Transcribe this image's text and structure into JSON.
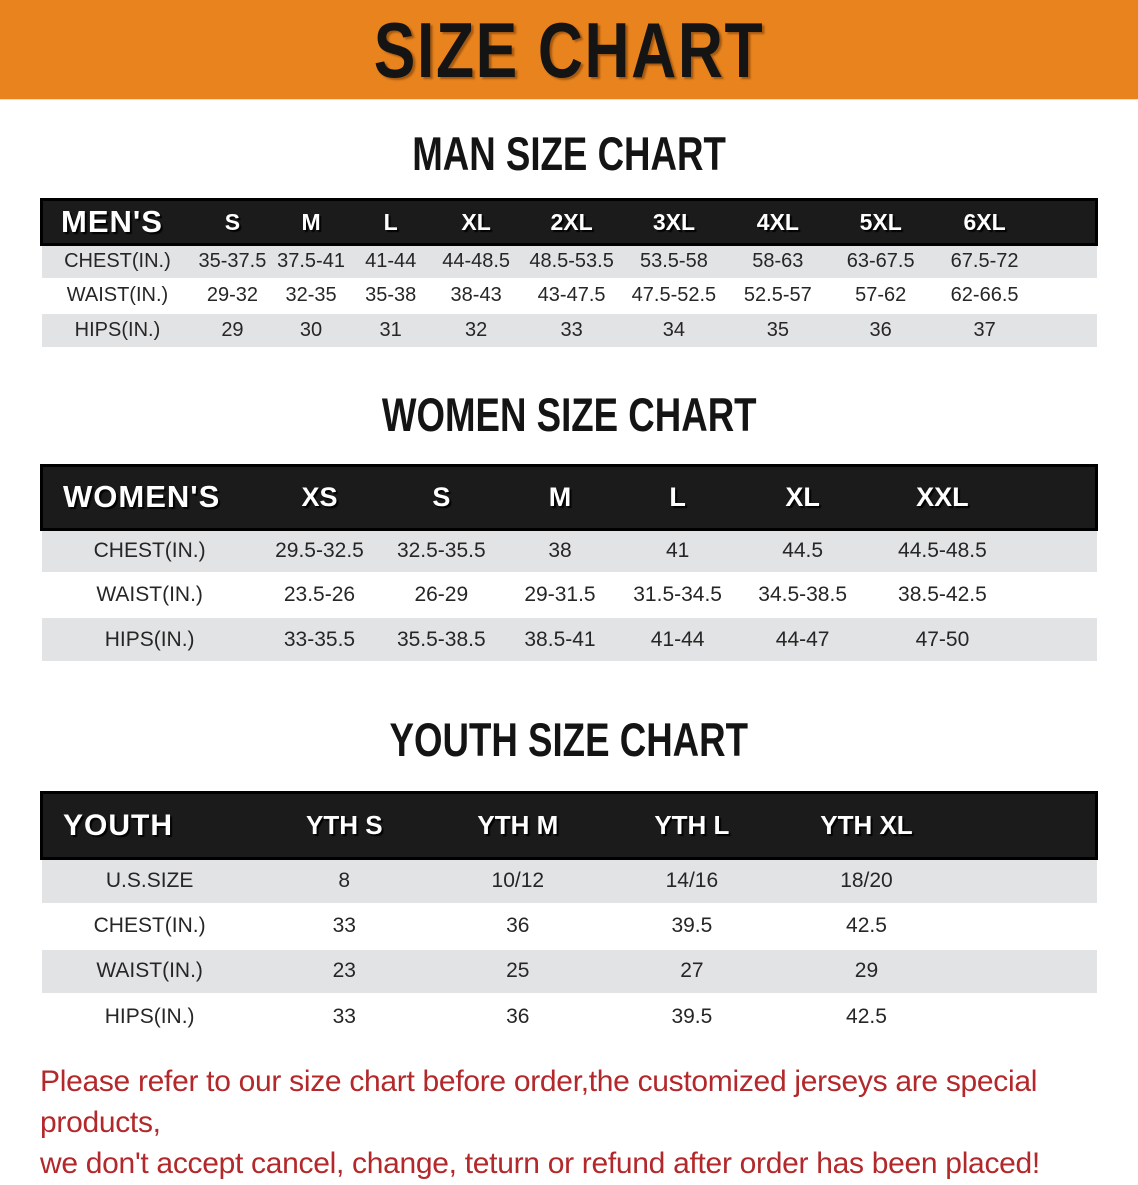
{
  "banner": {
    "title": "SIZE CHART",
    "background_color": "#E8831D"
  },
  "sections": [
    {
      "heading": "MAN SIZE CHART",
      "table": {
        "header_label": "MEN'S",
        "columns": [
          "S",
          "M",
          "L",
          "XL",
          "2XL",
          "3XL",
          "4XL",
          "5XL",
          "6XL"
        ],
        "rows": [
          {
            "label": "CHEST(IN.)",
            "values": [
              "35-37.5",
              "37.5-41",
              "41-44",
              "44-48.5",
              "48.5-53.5",
              "53.5-58",
              "58-63",
              "63-67.5",
              "67.5-72"
            ]
          },
          {
            "label": "WAIST(IN.)",
            "values": [
              "29-32",
              "32-35",
              "35-38",
              "38-43",
              "43-47.5",
              "47.5-52.5",
              "52.5-57",
              "57-62",
              "62-66.5"
            ]
          },
          {
            "label": "HIPS(IN.)",
            "values": [
              "29",
              "30",
              "31",
              "32",
              "33",
              "34",
              "35",
              "36",
              "37"
            ]
          }
        ]
      }
    },
    {
      "heading": "WOMEN SIZE CHART",
      "table": {
        "header_label": "WOMEN'S",
        "columns": [
          "XS",
          "S",
          "M",
          "L",
          "XL",
          "XXL"
        ],
        "rows": [
          {
            "label": "CHEST(IN.)",
            "values": [
              "29.5-32.5",
              "32.5-35.5",
              "38",
              "41",
              "44.5",
              "44.5-48.5"
            ]
          },
          {
            "label": "WAIST(IN.)",
            "values": [
              "23.5-26",
              "26-29",
              "29-31.5",
              "31.5-34.5",
              "34.5-38.5",
              "38.5-42.5"
            ]
          },
          {
            "label": "HIPS(IN.)",
            "values": [
              "33-35.5",
              "35.5-38.5",
              "38.5-41",
              "41-44",
              "44-47",
              "47-50"
            ]
          }
        ]
      }
    },
    {
      "heading": "YOUTH SIZE CHART",
      "table": {
        "header_label": "YOUTH",
        "columns": [
          "YTH S",
          "YTH M",
          "YTH L",
          "YTH XL"
        ],
        "rows": [
          {
            "label": "U.S.SIZE",
            "values": [
              "8",
              "10/12",
              "14/16",
              "18/20"
            ]
          },
          {
            "label": "CHEST(IN.)",
            "values": [
              "33",
              "36",
              "39.5",
              "42.5"
            ]
          },
          {
            "label": "WAIST(IN.)",
            "values": [
              "23",
              "25",
              "27",
              "29"
            ]
          },
          {
            "label": "HIPS(IN.)",
            "values": [
              "33",
              "36",
              "39.5",
              "42.5"
            ]
          }
        ]
      }
    }
  ],
  "footer": {
    "line1": "Please refer to our size chart before order,the customized jerseys are special products,",
    "line2": "we don't accept cancel, change, teturn or refund after order has been placed!",
    "text_color": "#B2282B"
  }
}
